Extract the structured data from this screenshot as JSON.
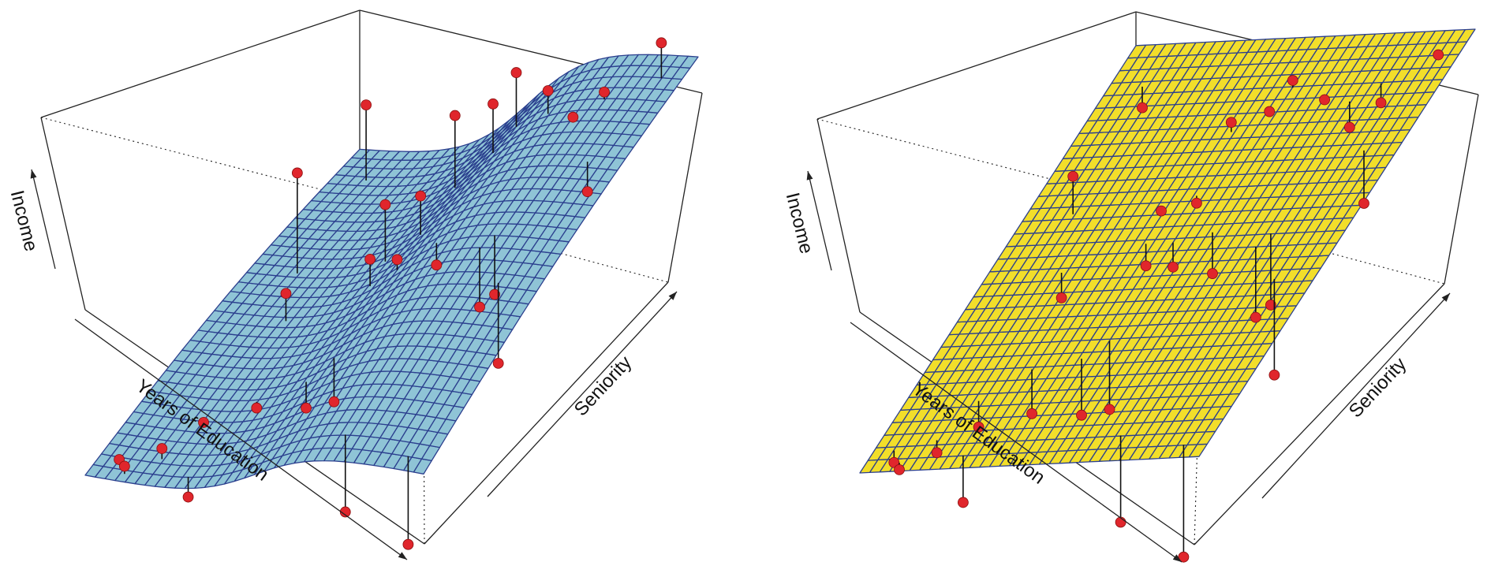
{
  "figure": {
    "panels": [
      {
        "surface_type": "smooth-nonparametric",
        "surface_color": "#8fc4d6",
        "mesh_color": "#2b3f8e",
        "labels": {
          "z": "Income",
          "x": "Years of Education",
          "y": "Seniority"
        }
      },
      {
        "surface_type": "linear-plane",
        "surface_color": "#f2de2a",
        "mesh_color": "#2b3f8e",
        "labels": {
          "z": "Income",
          "x": "Years of Education",
          "y": "Seniority"
        }
      }
    ],
    "point_color": "#e0262c",
    "stem_color": "#111111"
  },
  "chart_data": [
    {
      "type": "scatter",
      "surface": "smooth",
      "xlabel": "Years of Education",
      "ylabel": "Seniority",
      "zlabel": "Income",
      "points": [
        {
          "x": 0.06,
          "y": 0.05,
          "z": 0.1
        },
        {
          "x": 0.1,
          "y": 0.02,
          "z": 0.12
        },
        {
          "x": 0.17,
          "y": 0.07,
          "z": 0.15
        },
        {
          "x": 0.28,
          "y": 0.03,
          "z": 0.03
        },
        {
          "x": 0.22,
          "y": 0.16,
          "z": 0.16
        },
        {
          "x": 0.32,
          "y": 0.23,
          "z": 0.16
        },
        {
          "x": 0.45,
          "y": 0.25,
          "z": 0.17
        },
        {
          "x": 0.5,
          "y": 0.29,
          "z": 0.16
        },
        {
          "x": 0.72,
          "y": 0.06,
          "z": 0.05
        },
        {
          "x": 0.93,
          "y": 0.03,
          "z": 0.01
        },
        {
          "x": 0.14,
          "y": 0.6,
          "z": 0.62
        },
        {
          "x": 0.22,
          "y": 0.46,
          "z": 0.32
        },
        {
          "x": 0.1,
          "y": 0.9,
          "z": 0.52
        },
        {
          "x": 0.4,
          "y": 0.6,
          "z": 0.56
        },
        {
          "x": 0.48,
          "y": 0.63,
          "z": 0.58
        },
        {
          "x": 0.42,
          "y": 0.52,
          "z": 0.44
        },
        {
          "x": 0.5,
          "y": 0.52,
          "z": 0.46
        },
        {
          "x": 0.6,
          "y": 0.54,
          "z": 0.44
        },
        {
          "x": 0.46,
          "y": 0.78,
          "z": 0.72
        },
        {
          "x": 0.54,
          "y": 0.82,
          "z": 0.74
        },
        {
          "x": 0.56,
          "y": 0.88,
          "z": 0.8
        },
        {
          "x": 0.76,
          "y": 0.5,
          "z": 0.36
        },
        {
          "x": 0.78,
          "y": 0.53,
          "z": 0.38
        },
        {
          "x": 0.88,
          "y": 0.42,
          "z": 0.26
        },
        {
          "x": 0.76,
          "y": 0.84,
          "z": 0.72
        },
        {
          "x": 0.82,
          "y": 0.88,
          "z": 0.79
        },
        {
          "x": 0.9,
          "y": 0.72,
          "z": 0.6
        },
        {
          "x": 0.94,
          "y": 0.94,
          "z": 0.95
        },
        {
          "x": 0.67,
          "y": 0.86,
          "z": 0.78
        }
      ]
    },
    {
      "type": "scatter",
      "surface": "linear",
      "xlabel": "Years of Education",
      "ylabel": "Seniority",
      "zlabel": "Income",
      "points": [
        {
          "x": 0.06,
          "y": 0.05,
          "z": 0.1
        },
        {
          "x": 0.1,
          "y": 0.02,
          "z": 0.12
        },
        {
          "x": 0.17,
          "y": 0.07,
          "z": 0.15
        },
        {
          "x": 0.28,
          "y": 0.03,
          "z": 0.03
        },
        {
          "x": 0.22,
          "y": 0.16,
          "z": 0.16
        },
        {
          "x": 0.32,
          "y": 0.23,
          "z": 0.16
        },
        {
          "x": 0.45,
          "y": 0.25,
          "z": 0.17
        },
        {
          "x": 0.5,
          "y": 0.29,
          "z": 0.16
        },
        {
          "x": 0.72,
          "y": 0.06,
          "z": 0.05
        },
        {
          "x": 0.93,
          "y": 0.03,
          "z": 0.01
        },
        {
          "x": 0.14,
          "y": 0.6,
          "z": 0.62
        },
        {
          "x": 0.22,
          "y": 0.46,
          "z": 0.32
        },
        {
          "x": 0.1,
          "y": 0.9,
          "z": 0.52
        },
        {
          "x": 0.4,
          "y": 0.6,
          "z": 0.56
        },
        {
          "x": 0.48,
          "y": 0.63,
          "z": 0.58
        },
        {
          "x": 0.42,
          "y": 0.52,
          "z": 0.44
        },
        {
          "x": 0.5,
          "y": 0.52,
          "z": 0.46
        },
        {
          "x": 0.6,
          "y": 0.54,
          "z": 0.44
        },
        {
          "x": 0.46,
          "y": 0.78,
          "z": 0.72
        },
        {
          "x": 0.54,
          "y": 0.82,
          "z": 0.74
        },
        {
          "x": 0.56,
          "y": 0.88,
          "z": 0.8
        },
        {
          "x": 0.76,
          "y": 0.5,
          "z": 0.36
        },
        {
          "x": 0.78,
          "y": 0.53,
          "z": 0.38
        },
        {
          "x": 0.88,
          "y": 0.42,
          "z": 0.26
        },
        {
          "x": 0.76,
          "y": 0.84,
          "z": 0.72
        },
        {
          "x": 0.82,
          "y": 0.88,
          "z": 0.79
        },
        {
          "x": 0.9,
          "y": 0.72,
          "z": 0.6
        },
        {
          "x": 0.94,
          "y": 0.94,
          "z": 0.95
        },
        {
          "x": 0.67,
          "y": 0.86,
          "z": 0.78
        }
      ]
    }
  ]
}
